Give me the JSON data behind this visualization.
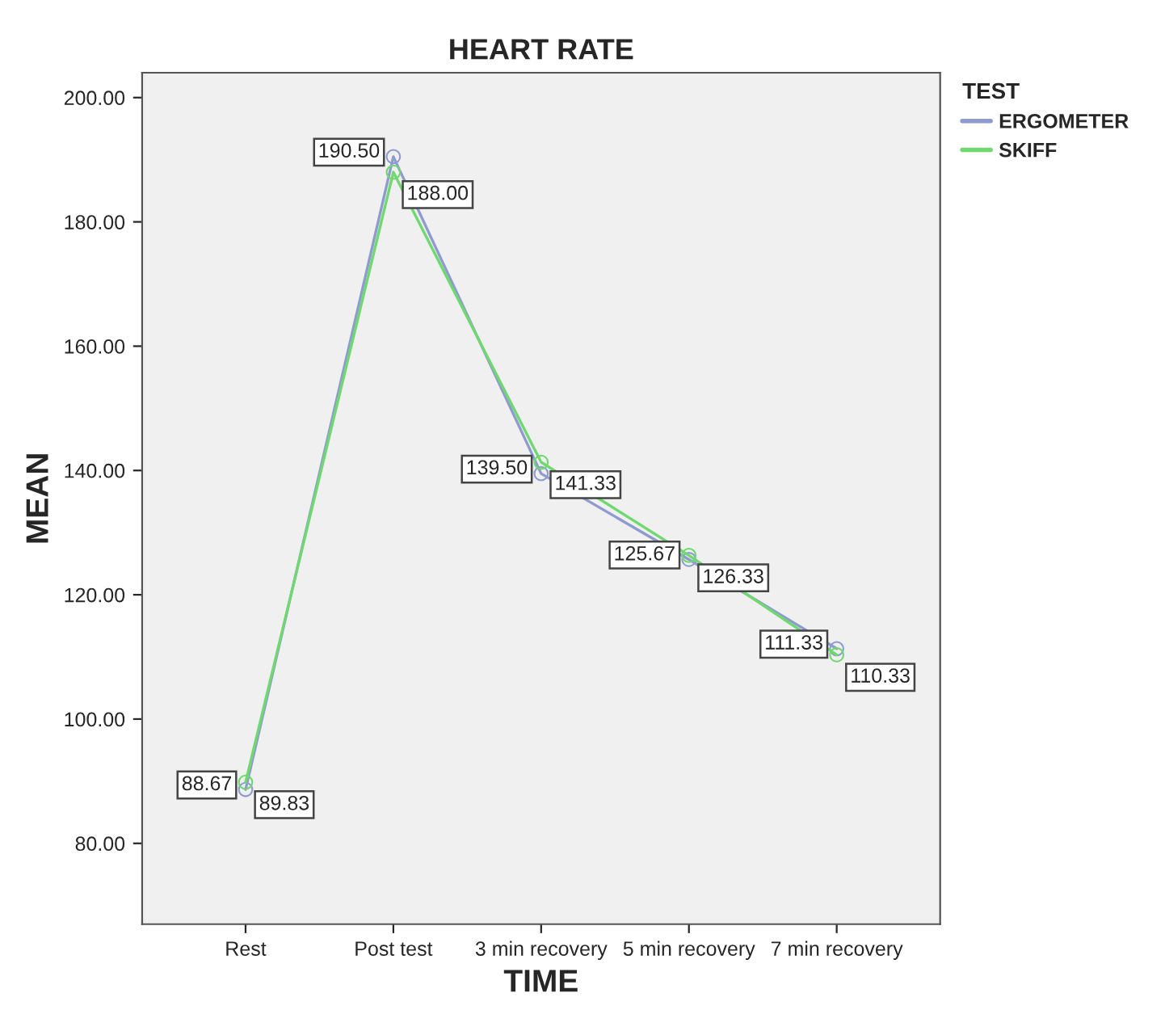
{
  "chart_data": {
    "type": "line",
    "title": "HEART RATE",
    "xlabel": "TIME",
    "ylabel": "MEAN",
    "legend_title": "TEST",
    "categories": [
      "Rest",
      "Post test",
      "3 min recovery",
      "5 min recovery",
      "7 min recovery"
    ],
    "series": [
      {
        "name": "ERGOMETER",
        "color": "#8f9bd0",
        "values": [
          88.67,
          190.5,
          139.5,
          125.67,
          111.33
        ],
        "value_labels": [
          "88.67",
          "190.50",
          "139.50",
          "125.67",
          "111.33"
        ]
      },
      {
        "name": "SKIFF",
        "color": "#6fd96f",
        "values": [
          89.83,
          188.0,
          141.33,
          126.33,
          110.33
        ],
        "value_labels": [
          "89.83",
          "188.00",
          "141.33",
          "126.33",
          "110.33"
        ]
      }
    ],
    "ylim": [
      67,
      204
    ],
    "yticks": [
      {
        "value": 80,
        "label": "80.00"
      },
      {
        "value": 100,
        "label": "100.00"
      },
      {
        "value": 120,
        "label": "120.00"
      },
      {
        "value": 140,
        "label": "140.00"
      },
      {
        "value": 160,
        "label": "160.00"
      },
      {
        "value": 180,
        "label": "180.00"
      },
      {
        "value": 200,
        "label": "200.00"
      }
    ],
    "marker": "circle",
    "line_style": "solid",
    "grid": false,
    "legend": "top right"
  }
}
